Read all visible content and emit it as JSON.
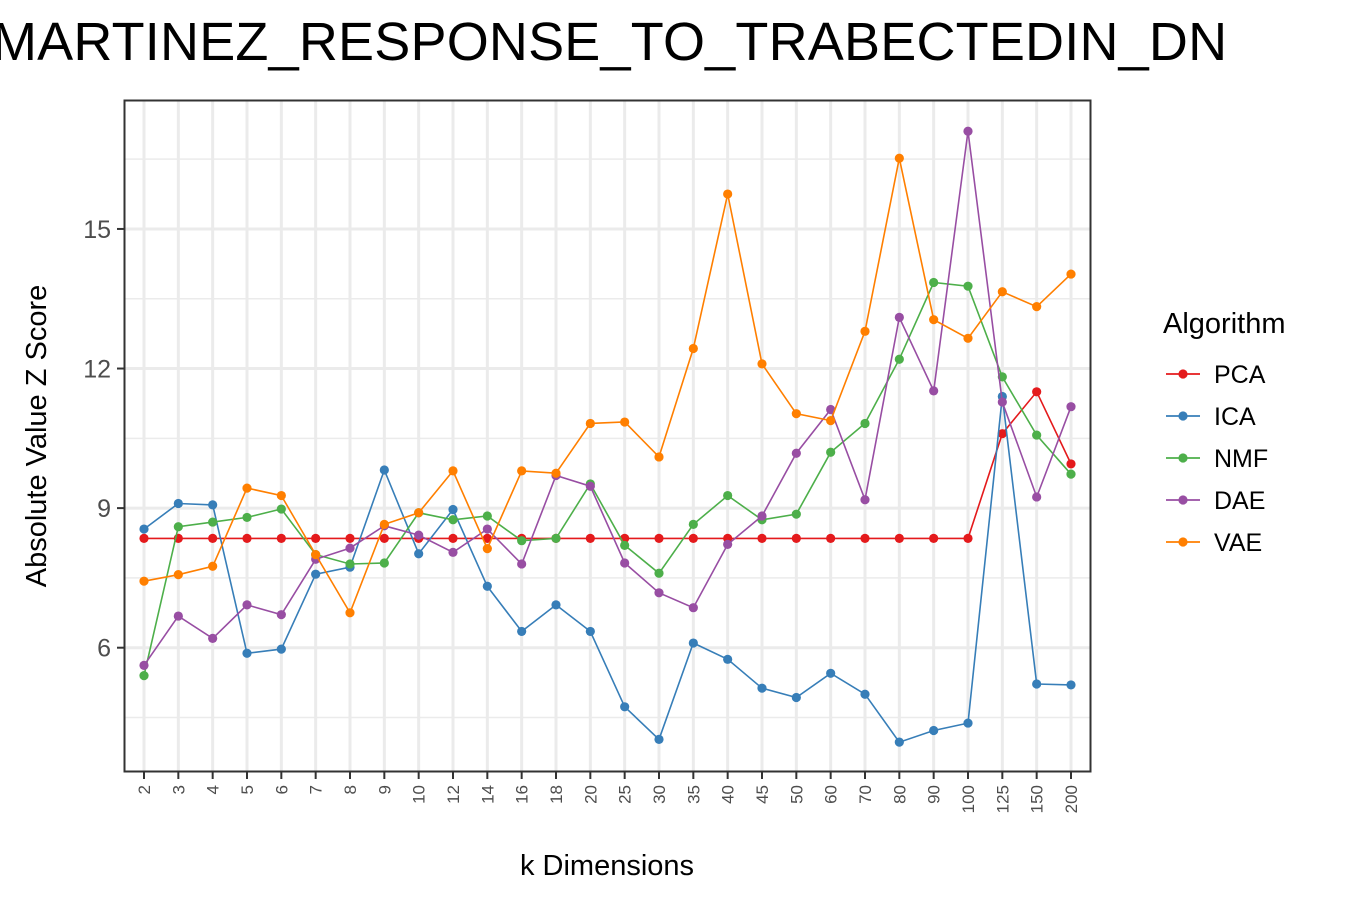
{
  "chart_data": {
    "type": "line",
    "title": "MARTINEZ_RESPONSE_TO_TRABECTEDIN_DN",
    "xlabel": "k Dimensions",
    "ylabel": "Absolute Value Z Score",
    "categories": [
      "2",
      "3",
      "4",
      "5",
      "6",
      "7",
      "8",
      "9",
      "10",
      "12",
      "14",
      "16",
      "18",
      "20",
      "25",
      "30",
      "35",
      "40",
      "45",
      "50",
      "60",
      "70",
      "80",
      "90",
      "100",
      "125",
      "150",
      "200"
    ],
    "ylim": [
      3.35,
      17.75
    ],
    "y_ticks": [
      6,
      9,
      12,
      15
    ],
    "grid": true,
    "legend": {
      "title": "Algorithm",
      "placement": "right"
    },
    "series": [
      {
        "name": "PCA",
        "color": "#E41A1C",
        "values": [
          8.35,
          8.35,
          8.35,
          8.35,
          8.35,
          8.35,
          8.35,
          8.35,
          8.35,
          8.35,
          8.35,
          8.35,
          8.35,
          8.35,
          8.35,
          8.35,
          8.35,
          8.35,
          8.35,
          8.35,
          8.35,
          8.35,
          8.35,
          8.35,
          8.35,
          10.6,
          11.5,
          9.95
        ]
      },
      {
        "name": "ICA",
        "color": "#377EB8",
        "values": [
          8.55,
          9.1,
          9.07,
          5.88,
          5.97,
          7.58,
          7.73,
          9.82,
          8.02,
          8.97,
          7.32,
          6.35,
          6.92,
          6.35,
          4.73,
          4.03,
          6.1,
          5.75,
          5.13,
          4.93,
          5.45,
          5.0,
          3.97,
          4.22,
          4.38,
          11.4,
          5.22,
          5.2
        ]
      },
      {
        "name": "NMF",
        "color": "#4DAF4A",
        "values": [
          5.4,
          8.6,
          8.7,
          8.8,
          8.98,
          8.0,
          7.8,
          7.82,
          8.9,
          8.75,
          8.83,
          8.3,
          8.35,
          9.52,
          8.2,
          7.6,
          8.65,
          9.27,
          8.75,
          8.87,
          10.2,
          10.82,
          12.2,
          13.85,
          13.77,
          11.82,
          10.57,
          9.73
        ]
      },
      {
        "name": "DAE",
        "color": "#984EA3",
        "values": [
          5.62,
          6.68,
          6.2,
          6.92,
          6.71,
          7.9,
          8.14,
          8.62,
          8.42,
          8.05,
          8.55,
          7.8,
          9.7,
          9.47,
          7.82,
          7.18,
          6.86,
          8.22,
          8.83,
          10.18,
          11.12,
          9.18,
          13.1,
          11.52,
          17.1,
          11.28,
          9.24,
          11.18
        ]
      },
      {
        "name": "VAE",
        "color": "#FF7F00",
        "values": [
          7.43,
          7.57,
          7.75,
          9.43,
          9.27,
          8.0,
          6.75,
          8.65,
          8.9,
          9.8,
          8.13,
          9.8,
          9.75,
          10.82,
          10.85,
          10.1,
          12.43,
          15.75,
          12.1,
          11.03,
          10.88,
          12.8,
          16.52,
          13.05,
          12.65,
          13.65,
          13.33,
          14.03
        ]
      }
    ]
  }
}
